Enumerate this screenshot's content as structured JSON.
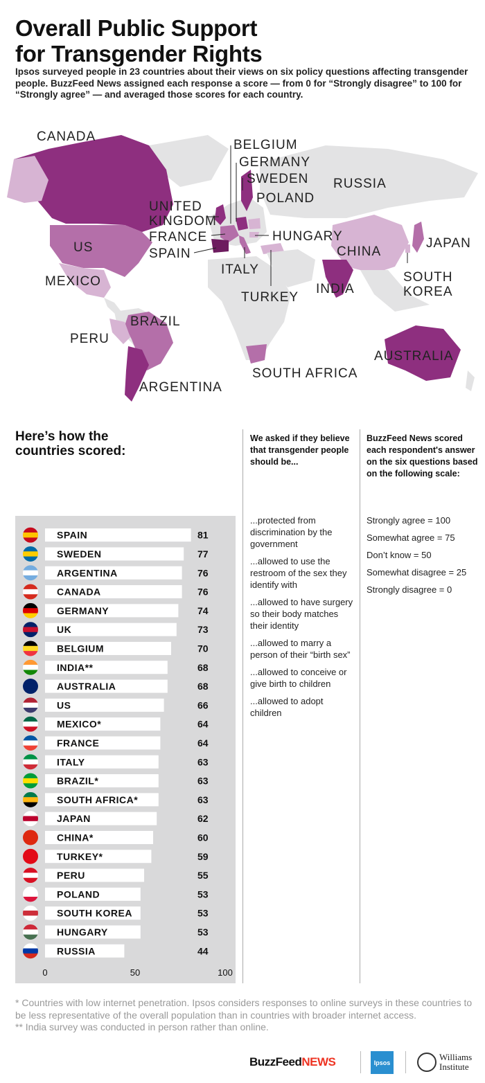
{
  "header": {
    "title_line1": "Overall Public Support",
    "title_line2": "for Transgender Rights",
    "intro": "Ipsos surveyed people in 23 countries about their views on six policy questions affecting transgender people. BuzzFeed News assigned each response a score — from 0 for “Strongly disagree” to 100 for “Strongly agree” — and averaged those scores for each country."
  },
  "map": {
    "labels": {
      "canada": "CANADA",
      "us": "US",
      "mexico": "MEXICO",
      "united_kingdom_1": "UNITED",
      "united_kingdom_2": "KINGDOM",
      "france": "FRANCE",
      "spain": "SPAIN",
      "belgium": "BELGIUM",
      "germany": "GERMANY",
      "sweden": "SWEDEN",
      "poland": "POLAND",
      "russia": "RUSSIA",
      "hungary": "HUNGARY",
      "italy": "ITALY",
      "turkey": "TURKEY",
      "china": "CHINA",
      "japan": "JAPAN",
      "south_korea_1": "SOUTH",
      "south_korea_2": "KOREA",
      "india": "INDIA",
      "brazil": "BRAZIL",
      "peru": "PERU",
      "argentina": "ARGENTINA",
      "south_africa": "SOUTH AFRICA",
      "australia": "AUSTRALIA"
    },
    "colors": {
      "land": "#e3e3e4",
      "low": "#d7b4d3",
      "mid": "#b46fa9",
      "high": "#8e2f7f",
      "darkest": "#6d1c5f"
    }
  },
  "section": {
    "scored_title_1": "Here’s how the",
    "scored_title_2": "countries scored:",
    "questions_head": "We asked if they believe that transgender people should be...",
    "scale_head": "BuzzFeed News scored each respondent's answer on the six questions based on the following scale:"
  },
  "questions": [
    "...protected from discrimination by the government",
    "...allowed to use the restroom of the sex they identify with",
    "...allowed to have surgery so their body matches their identity",
    "...allowed to marry a person of their “birth sex”",
    "...allowed to conceive or give birth to children",
    "...allowed to adopt children"
  ],
  "scale": [
    "Strongly agree = 100",
    "Somewhat agree = 75",
    "Don’t know = 50",
    "Somewhat disagree = 25",
    "Strongly disagree = 0"
  ],
  "chart_data": {
    "type": "bar",
    "orientation": "horizontal",
    "categories": [
      "SPAIN",
      "SWEDEN",
      "ARGENTINA",
      "CANADA",
      "GERMANY",
      "UK",
      "BELGIUM",
      "INDIA**",
      "AUSTRALIA",
      "US",
      "MEXICO*",
      "FRANCE",
      "ITALY",
      "BRAZIL*",
      "SOUTH AFRICA*",
      "JAPAN",
      "CHINA*",
      "TURKEY*",
      "PERU",
      "POLAND",
      "SOUTH KOREA",
      "HUNGARY",
      "RUSSIA"
    ],
    "values": [
      81,
      77,
      76,
      76,
      74,
      73,
      70,
      68,
      68,
      66,
      64,
      64,
      63,
      63,
      63,
      62,
      60,
      59,
      55,
      53,
      53,
      53,
      44
    ],
    "flags": [
      "spain-flag",
      "sweden-flag",
      "argentina-flag",
      "canada-flag",
      "germany-flag",
      "uk-flag",
      "belgium-flag",
      "india-flag",
      "australia-flag",
      "us-flag",
      "mexico-flag",
      "france-flag",
      "italy-flag",
      "brazil-flag",
      "south-africa-flag",
      "japan-flag",
      "china-flag",
      "turkey-flag",
      "peru-flag",
      "poland-flag",
      "south-korea-flag",
      "hungary-flag",
      "russia-flag"
    ],
    "xlim": [
      0,
      100
    ],
    "xticks": [
      0,
      50,
      100
    ],
    "bar_color": "#ffffff",
    "background_color": "#d9d9da"
  },
  "footnotes": {
    "note1": "* Countries with low internet penetration. Ipsos considers responses to online surveys in these countries to be less representative of the overall population than in countries with broader internet access.",
    "note2": "** India survey was conducted in person rather than online."
  },
  "logos": {
    "buzzfeed": "BuzzFeed",
    "news": "NEWS",
    "ipsos": "Ipsos",
    "williams_1": "Williams",
    "williams_2": "Institute"
  }
}
